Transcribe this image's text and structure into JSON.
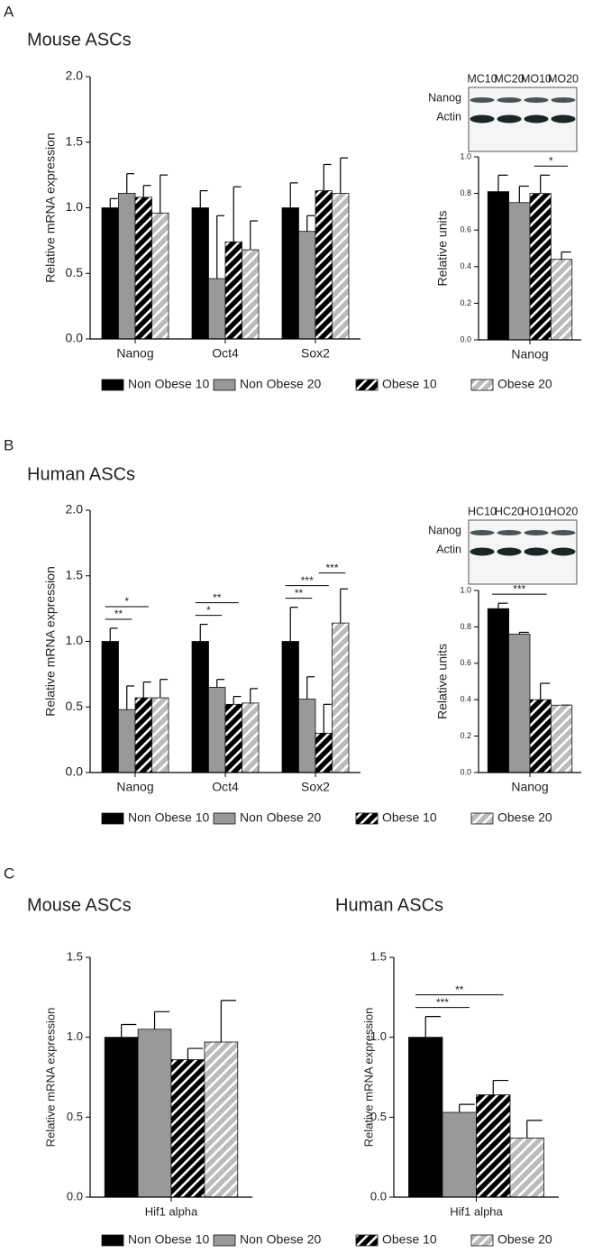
{
  "panel_labels": [
    "A",
    "B",
    "C"
  ],
  "blots": [
    {
      "lanes": [
        "MC10",
        "MC20",
        "MO10",
        "MO20"
      ],
      "rows": [
        "Nanog",
        "Actin"
      ]
    },
    {
      "lanes": [
        "HC10",
        "HC20",
        "HO10",
        "HO20"
      ],
      "rows": [
        "Nanog",
        "Actin"
      ]
    }
  ],
  "chart_data": [
    {
      "type": "bar",
      "title": "Mouse ASCs",
      "y_label": "Relative mRNA expression",
      "categories": [
        "Nanog",
        "Oct4",
        "Sox2"
      ],
      "series": [
        {
          "name": "Non Obese 10",
          "color": "#000000",
          "hatch": false,
          "values": [
            1.0,
            1.0,
            1.0
          ],
          "errors": [
            0.07,
            0.13,
            0.19
          ]
        },
        {
          "name": "Non Obese 20",
          "color": "#999999",
          "hatch": false,
          "values": [
            1.11,
            0.46,
            0.82
          ],
          "errors": [
            0.15,
            0.48,
            0.12
          ]
        },
        {
          "name": "Obese 10",
          "color": "#000000",
          "hatch": true,
          "values": [
            1.08,
            0.74,
            1.13
          ],
          "errors": [
            0.09,
            0.42,
            0.2
          ]
        },
        {
          "name": "Obese 20",
          "color": "#bbbbbb",
          "hatch": true,
          "values": [
            0.96,
            0.68,
            1.11
          ],
          "errors": [
            0.29,
            0.22,
            0.27
          ]
        }
      ],
      "ylim": [
        0,
        2
      ],
      "yticks": [
        {
          "value": 0,
          "label": "0.0"
        },
        {
          "value": 0.5,
          "label": "0.5"
        },
        {
          "value": 1,
          "label": "1.0"
        },
        {
          "value": 1.5,
          "label": "1.5"
        },
        {
          "value": 2,
          "label": "2.0"
        }
      ],
      "annotations": []
    },
    {
      "type": "bar",
      "y_label": "Relative units",
      "categories": [
        "Nanog"
      ],
      "series": [
        {
          "name": "Non Obese 10",
          "color": "#000000",
          "hatch": false,
          "values": [
            0.81
          ],
          "errors": [
            0.09
          ]
        },
        {
          "name": "Non Obese 20",
          "color": "#999999",
          "hatch": false,
          "values": [
            0.75
          ],
          "errors": [
            0.09
          ]
        },
        {
          "name": "Obese 10",
          "color": "#000000",
          "hatch": true,
          "values": [
            0.8
          ],
          "errors": [
            0.1
          ]
        },
        {
          "name": "Obese 20",
          "color": "#bbbbbb",
          "hatch": true,
          "values": [
            0.44
          ],
          "errors": [
            0.04
          ]
        }
      ],
      "ylim": [
        0,
        1
      ],
      "yticks": [
        {
          "value": 0,
          "label": "0.0"
        },
        {
          "value": 0.2,
          "label": "0.2"
        },
        {
          "value": 0.4,
          "label": "0.4"
        },
        {
          "value": 0.6,
          "label": "0.6"
        },
        {
          "value": 0.8,
          "label": "0.8"
        },
        {
          "value": 1,
          "label": "1.0"
        }
      ],
      "annotations": [
        {
          "text": "*",
          "category": "Nanog",
          "from": "Obese 10",
          "to": "Obese 20"
        }
      ]
    },
    {
      "type": "bar",
      "title": "Human ASCs",
      "y_label": "Relative mRNA expression",
      "categories": [
        "Nanog",
        "Oct4",
        "Sox2"
      ],
      "series": [
        {
          "name": "Non Obese 10",
          "color": "#000000",
          "hatch": false,
          "values": [
            1.0,
            1.0,
            1.0
          ],
          "errors": [
            0.1,
            0.13,
            0.26
          ]
        },
        {
          "name": "Non Obese 20",
          "color": "#999999",
          "hatch": false,
          "values": [
            0.48,
            0.65,
            0.56
          ],
          "errors": [
            0.18,
            0.06,
            0.17
          ]
        },
        {
          "name": "Obese 10",
          "color": "#000000",
          "hatch": true,
          "values": [
            0.57,
            0.52,
            0.3
          ],
          "errors": [
            0.12,
            0.06,
            0.22
          ]
        },
        {
          "name": "Obese 20",
          "color": "#bbbbbb",
          "hatch": true,
          "values": [
            0.57,
            0.53,
            1.14
          ],
          "errors": [
            0.14,
            0.11,
            0.26
          ]
        }
      ],
      "ylim": [
        0,
        2
      ],
      "yticks": [
        {
          "value": 0,
          "label": "0.0"
        },
        {
          "value": 0.5,
          "label": "0.5"
        },
        {
          "value": 1,
          "label": "1.0"
        },
        {
          "value": 1.5,
          "label": "1.5"
        },
        {
          "value": 2,
          "label": "2.0"
        }
      ],
      "annotations": [
        {
          "text": "**",
          "category": "Nanog",
          "from": "Non Obese 10",
          "to": "Non Obese 20"
        },
        {
          "text": "*",
          "category": "Nanog",
          "from": "Non Obese 10",
          "to": "Obese 10"
        },
        {
          "text": "*",
          "category": "Oct4",
          "from": "Non Obese 10",
          "to": "Non Obese 20"
        },
        {
          "text": "**",
          "category": "Oct4",
          "from": "Non Obese 10",
          "to": "Obese 10"
        },
        {
          "text": "**",
          "category": "Sox2",
          "from": "Non Obese 10",
          "to": "Non Obese 20"
        },
        {
          "text": "***",
          "category": "Sox2",
          "from": "Non Obese 10",
          "to": "Obese 10"
        },
        {
          "text": "***",
          "category": "Sox2",
          "from": "Obese 10",
          "to": "Obese 20"
        }
      ]
    },
    {
      "type": "bar",
      "y_label": "Relative units",
      "categories": [
        "Nanog"
      ],
      "series": [
        {
          "name": "Non Obese 10",
          "color": "#000000",
          "hatch": false,
          "values": [
            0.9
          ],
          "errors": [
            0.03
          ]
        },
        {
          "name": "Non Obese 20",
          "color": "#999999",
          "hatch": false,
          "values": [
            0.76
          ],
          "errors": [
            0.01
          ]
        },
        {
          "name": "Obese 10",
          "color": "#000000",
          "hatch": true,
          "values": [
            0.4
          ],
          "errors": [
            0.09
          ]
        },
        {
          "name": "Obese 20",
          "color": "#bbbbbb",
          "hatch": true,
          "values": [
            0.37
          ],
          "errors": [
            0
          ]
        }
      ],
      "ylim": [
        0,
        1
      ],
      "yticks": [
        {
          "value": 0,
          "label": "0.0"
        },
        {
          "value": 0.2,
          "label": "0.2"
        },
        {
          "value": 0.4,
          "label": "0.4"
        },
        {
          "value": 0.6,
          "label": "0.6"
        },
        {
          "value": 0.8,
          "label": "0.8"
        },
        {
          "value": 1,
          "label": "1.0"
        }
      ],
      "annotations": [
        {
          "text": "***",
          "category": "Nanog",
          "from": "Non Obese 10",
          "to": "Obese 10"
        }
      ]
    },
    {
      "type": "bar",
      "title": "Mouse ASCs",
      "y_label": "Relative mRNA expression",
      "categories": [
        "Hif1 alpha"
      ],
      "series": [
        {
          "name": "Non Obese 10",
          "color": "#000000",
          "hatch": false,
          "values": [
            1.0
          ],
          "errors": [
            0.08
          ]
        },
        {
          "name": "Non Obese 20",
          "color": "#999999",
          "hatch": false,
          "values": [
            1.05
          ],
          "errors": [
            0.11
          ]
        },
        {
          "name": "Obese 10",
          "color": "#000000",
          "hatch": true,
          "values": [
            0.86
          ],
          "errors": [
            0.07
          ]
        },
        {
          "name": "Obese 20",
          "color": "#bbbbbb",
          "hatch": true,
          "values": [
            0.97
          ],
          "errors": [
            0.26
          ]
        }
      ],
      "ylim": [
        0,
        1.5
      ],
      "yticks": [
        {
          "value": 0,
          "label": "0.0"
        },
        {
          "value": 0.5,
          "label": "0.5"
        },
        {
          "value": 1,
          "label": "1.0"
        },
        {
          "value": 1.5,
          "label": "1.5"
        }
      ],
      "annotations": []
    },
    {
      "type": "bar",
      "title": "Human ASCs",
      "y_label": "Relative mRNA expression",
      "categories": [
        "Hif1 alpha"
      ],
      "series": [
        {
          "name": "Non Obese 10",
          "color": "#000000",
          "hatch": false,
          "values": [
            1.0
          ],
          "errors": [
            0.13
          ]
        },
        {
          "name": "Non Obese 20",
          "color": "#999999",
          "hatch": false,
          "values": [
            0.53
          ],
          "errors": [
            0.05
          ]
        },
        {
          "name": "Obese 10",
          "color": "#000000",
          "hatch": true,
          "values": [
            0.64
          ],
          "errors": [
            0.09
          ]
        },
        {
          "name": "Obese 20",
          "color": "#bbbbbb",
          "hatch": true,
          "values": [
            0.37
          ],
          "errors": [
            0.11
          ]
        }
      ],
      "ylim": [
        0,
        1.5
      ],
      "yticks": [
        {
          "value": 0,
          "label": "0.0"
        },
        {
          "value": 0.5,
          "label": "0.5"
        },
        {
          "value": 1,
          "label": "1.0"
        },
        {
          "value": 1.5,
          "label": "1.5"
        }
      ],
      "annotations": [
        {
          "text": "***",
          "category": "Hif1 alpha",
          "from": "Non Obese 10",
          "to": "Non Obese 20"
        },
        {
          "text": "**",
          "category": "Hif1 alpha",
          "from": "Non Obese 10",
          "to": "Obese 10"
        }
      ]
    }
  ]
}
